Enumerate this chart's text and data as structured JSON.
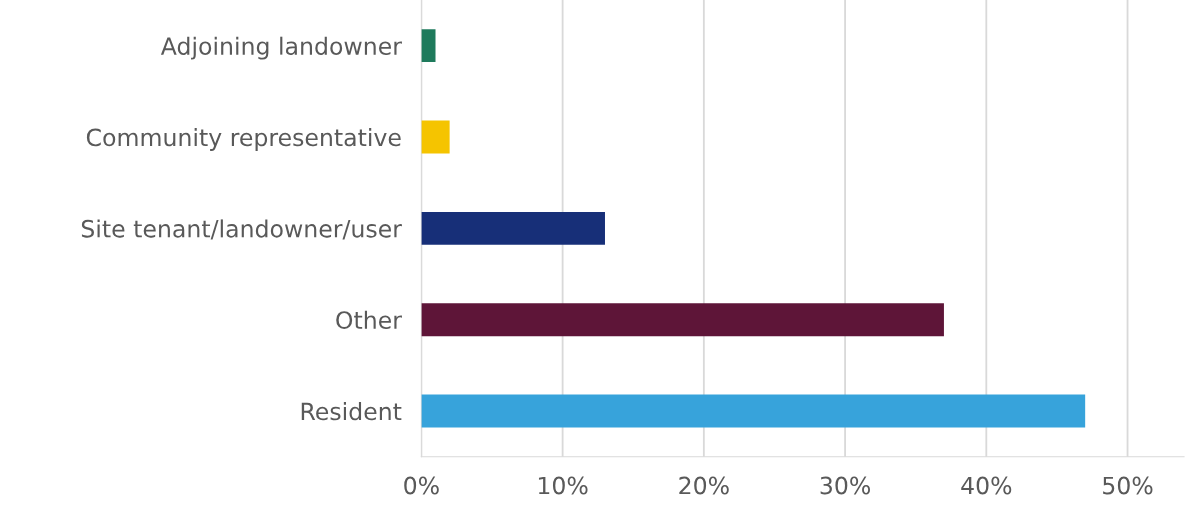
{
  "chart_data": {
    "type": "bar",
    "orientation": "horizontal",
    "categories": [
      "Adjoining landowner",
      "Community representative",
      "Site tenant/landowner/user",
      "Other",
      "Resident"
    ],
    "values": [
      1,
      2,
      13,
      37,
      47
    ],
    "colors": [
      "#1e7a5c",
      "#f5c400",
      "#172f78",
      "#5e1538",
      "#37a3db"
    ],
    "xlim": [
      0,
      54
    ],
    "xticks": [
      {
        "value": 0,
        "label": "0%"
      },
      {
        "value": 10,
        "label": "10%"
      },
      {
        "value": 20,
        "label": "20%"
      },
      {
        "value": 30,
        "label": "30%"
      },
      {
        "value": 40,
        "label": "40%"
      },
      {
        "value": 50,
        "label": "50%"
      }
    ],
    "grid": "x"
  }
}
